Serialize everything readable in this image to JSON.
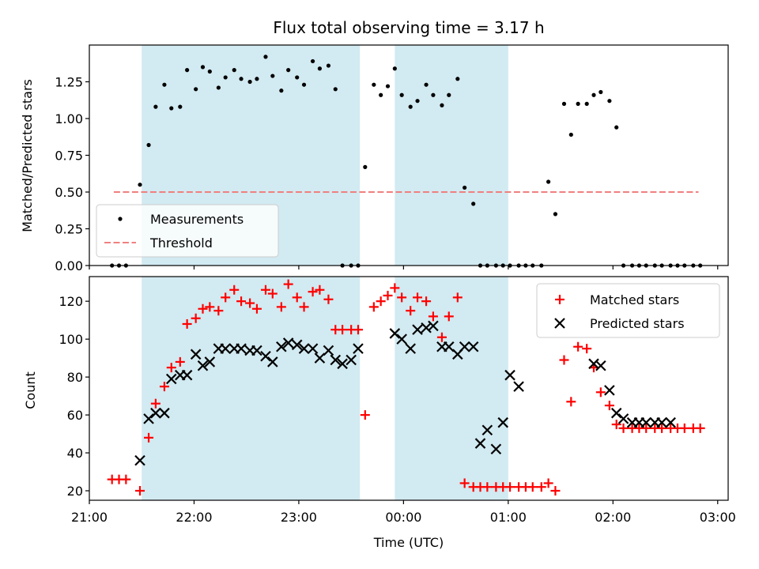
{
  "figure": {
    "title": "Flux total observing time = 3.17 h",
    "xlabel": "Time (UTC)"
  },
  "shading": {
    "color": "#add8e6",
    "intervals": [
      [
        "21:30",
        "23:35"
      ],
      [
        "23:55",
        "01:00"
      ]
    ]
  },
  "chart_data": [
    {
      "type": "scatter",
      "ylabel": "Matched/Predicted stars",
      "xlim": [
        "21:00",
        "03:06"
      ],
      "ylim": [
        0,
        1.5
      ],
      "yticks": [
        0.0,
        0.25,
        0.5,
        0.75,
        1.0,
        1.25
      ],
      "ytick_labels": [
        "0.00",
        "0.25",
        "0.50",
        "0.75",
        "1.00",
        "1.25"
      ],
      "legend": {
        "placement": "bottom-left",
        "entries": [
          "Measurements",
          "Threshold"
        ]
      },
      "threshold": {
        "name": "Threshold",
        "y": 0.5,
        "x": [
          "21:14",
          "02:49"
        ],
        "color": "#f08080"
      },
      "series": [
        {
          "name": "Measurements",
          "color": "#000000",
          "x": [
            "21:13",
            "21:17",
            "21:21",
            "21:29",
            "21:34",
            "21:38",
            "21:43",
            "21:47",
            "21:52",
            "21:56",
            "22:01",
            "22:05",
            "22:09",
            "22:14",
            "22:18",
            "22:23",
            "22:27",
            "22:32",
            "22:36",
            "22:41",
            "22:45",
            "22:50",
            "22:54",
            "22:59",
            "23:03",
            "23:08",
            "23:12",
            "23:17",
            "23:21",
            "23:25",
            "23:30",
            "23:34",
            "23:38",
            "23:43",
            "23:47",
            "23:51",
            "23:55",
            "23:59",
            "00:04",
            "00:08",
            "00:13",
            "00:17",
            "00:22",
            "00:26",
            "00:31",
            "00:35",
            "00:40",
            "00:44",
            "00:48",
            "00:53",
            "00:57",
            "01:01",
            "01:06",
            "01:10",
            "01:14",
            "01:19",
            "01:23",
            "01:27",
            "01:32",
            "01:36",
            "01:40",
            "01:45",
            "01:49",
            "01:53",
            "01:58",
            "02:02",
            "02:06",
            "02:11",
            "02:15",
            "02:19",
            "02:24",
            "02:28",
            "02:33",
            "02:37",
            "02:41",
            "02:46",
            "02:50"
          ],
          "y": [
            0,
            0,
            0,
            0.55,
            0.82,
            1.08,
            1.23,
            1.07,
            1.08,
            1.33,
            1.2,
            1.35,
            1.32,
            1.21,
            1.28,
            1.33,
            1.27,
            1.25,
            1.27,
            1.42,
            1.29,
            1.19,
            1.33,
            1.28,
            1.23,
            1.39,
            1.34,
            1.36,
            1.2,
            0,
            0,
            0,
            0.67,
            1.23,
            1.16,
            1.22,
            1.34,
            1.16,
            1.08,
            1.12,
            1.23,
            1.16,
            1.09,
            1.16,
            1.27,
            0.53,
            0.42,
            0,
            0,
            0,
            0,
            0,
            0,
            0,
            0,
            0,
            0.57,
            0.35,
            1.1,
            0.89,
            1.1,
            1.1,
            1.16,
            1.18,
            1.12,
            0.94,
            0,
            0,
            0,
            0,
            0,
            0,
            0,
            0,
            0,
            0,
            0
          ]
        }
      ]
    },
    {
      "type": "scatter",
      "ylabel": "Count",
      "xlim": [
        "21:00",
        "03:06"
      ],
      "ylim": [
        15,
        133
      ],
      "yticks": [
        20,
        40,
        60,
        80,
        100,
        120
      ],
      "ytick_labels": [
        "20",
        "40",
        "60",
        "80",
        "100",
        "120"
      ],
      "xtick_labels": [
        "21:00",
        "22:00",
        "23:00",
        "00:00",
        "01:00",
        "02:00",
        "03:00"
      ],
      "legend": {
        "placement": "top-right",
        "entries": [
          "Matched stars",
          "Predicted stars"
        ]
      },
      "series": [
        {
          "name": "Matched stars",
          "marker": "plus",
          "color": "#ff0000",
          "x": [
            "21:13",
            "21:17",
            "21:21",
            "21:29",
            "21:34",
            "21:38",
            "21:43",
            "21:47",
            "21:52",
            "21:56",
            "22:01",
            "22:05",
            "22:09",
            "22:14",
            "22:18",
            "22:23",
            "22:27",
            "22:32",
            "22:36",
            "22:41",
            "22:45",
            "22:50",
            "22:54",
            "22:59",
            "23:03",
            "23:08",
            "23:12",
            "23:17",
            "23:21",
            "23:25",
            "23:30",
            "23:34",
            "23:38",
            "23:43",
            "23:47",
            "23:51",
            "23:55",
            "23:59",
            "00:04",
            "00:08",
            "00:13",
            "00:17",
            "00:22",
            "00:26",
            "00:31",
            "00:35",
            "00:40",
            "00:44",
            "00:48",
            "00:53",
            "00:57",
            "01:01",
            "01:06",
            "01:10",
            "01:14",
            "01:19",
            "01:23",
            "01:27",
            "01:32",
            "01:36",
            "01:40",
            "01:45",
            "01:49",
            "01:53",
            "01:58",
            "02:02",
            "02:06",
            "02:11",
            "02:15",
            "02:19",
            "02:24",
            "02:28",
            "02:33",
            "02:37",
            "02:41",
            "02:46",
            "02:50"
          ],
          "y": [
            26,
            26,
            26,
            20,
            48,
            66,
            75,
            85,
            88,
            108,
            111,
            116,
            117,
            115,
            122,
            126,
            120,
            119,
            116,
            126,
            124,
            117,
            129,
            122,
            117,
            125,
            126,
            121,
            105,
            105,
            105,
            105,
            60,
            117,
            120,
            123,
            127,
            122,
            115,
            122,
            120,
            112,
            101,
            112,
            122,
            24,
            22,
            22,
            22,
            22,
            22,
            22,
            22,
            22,
            22,
            22,
            24,
            20,
            89,
            67,
            96,
            95,
            85,
            72,
            65,
            55,
            53,
            53,
            53,
            53,
            53,
            53,
            53,
            53,
            53,
            53,
            53
          ]
        },
        {
          "name": "Predicted stars",
          "marker": "x",
          "color": "#000000",
          "x": [
            "21:29",
            "21:34",
            "21:38",
            "21:43",
            "21:47",
            "21:52",
            "21:56",
            "22:01",
            "22:05",
            "22:09",
            "22:14",
            "22:18",
            "22:23",
            "22:27",
            "22:32",
            "22:36",
            "22:41",
            "22:45",
            "22:50",
            "22:54",
            "22:59",
            "23:03",
            "23:08",
            "23:12",
            "23:17",
            "23:21",
            "23:25",
            "23:30",
            "23:34",
            "23:55",
            "23:59",
            "00:04",
            "00:08",
            "00:13",
            "00:17",
            "00:22",
            "00:26",
            "00:31",
            "00:35",
            "00:40",
            "00:44",
            "00:48",
            "00:53",
            "00:57",
            "01:01",
            "01:06",
            "01:49",
            "01:53",
            "01:58",
            "02:02",
            "02:06",
            "02:11",
            "02:15",
            "02:19",
            "02:24",
            "02:28",
            "02:33"
          ],
          "y": [
            36,
            58,
            61,
            61,
            79,
            81,
            81,
            92,
            86,
            88,
            95,
            95,
            95,
            95,
            94,
            94,
            91,
            88,
            96,
            98,
            97,
            95,
            95,
            90,
            94,
            89,
            87,
            89,
            95,
            103,
            100,
            95,
            105,
            106,
            107,
            96,
            96,
            92,
            96,
            96,
            45,
            52,
            42,
            56,
            81,
            75,
            87,
            86,
            73,
            61,
            58,
            56,
            56,
            56,
            56,
            56,
            56
          ]
        }
      ]
    }
  ]
}
